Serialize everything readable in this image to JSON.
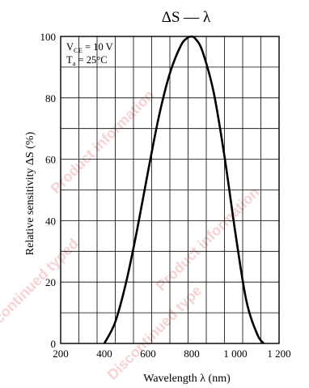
{
  "chart_data": {
    "type": "line",
    "title": "ΔS — λ",
    "xlabel": "Wavelength  λ  (nm)",
    "ylabel": "Relative sensitivity  ΔS  (%)",
    "xlim": [
      200,
      1200
    ],
    "ylim": [
      0,
      100
    ],
    "x_ticks": [
      "200",
      "400",
      "600",
      "800",
      "1 000",
      "1 200"
    ],
    "y_ticks": [
      "0",
      "20",
      "40",
      "60",
      "80",
      "100"
    ],
    "grid": true,
    "conditions": [
      {
        "sym": "V",
        "sub": "CE",
        "rest": " = 10 V"
      },
      {
        "sym": "T",
        "sub": "a",
        "rest": " = 25°C"
      }
    ],
    "series": [
      {
        "x": [
          400,
          450,
          500,
          550,
          600,
          650,
          700,
          750,
          780,
          800,
          820,
          850,
          900,
          950,
          1000,
          1050,
          1100,
          1130
        ],
        "y": [
          0,
          7,
          20,
          37,
          56,
          74,
          88,
          97,
          99.5,
          100,
          99,
          95,
          82,
          61,
          36,
          14,
          3,
          0
        ]
      }
    ]
  },
  "watermark": {
    "lines": [
      "Discontinued typed",
      "Product information",
      "Discontinued type",
      "Product information"
    ]
  }
}
